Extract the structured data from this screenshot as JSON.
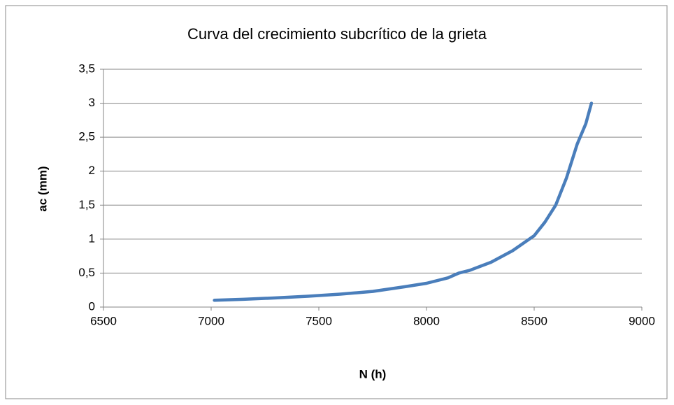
{
  "chart_data": {
    "type": "line",
    "title": "Curva del crecimiento subcrítico de la grieta",
    "x_label": "N (h)",
    "y_label": "ac (mm)",
    "x": [
      7015,
      7150,
      7300,
      7450,
      7600,
      7750,
      7900,
      8000,
      8100,
      8150,
      8200,
      8300,
      8400,
      8500,
      8550,
      8600,
      8650,
      8700,
      8740,
      8766
    ],
    "series": [
      {
        "name": "ac",
        "color": "#4a7ebb",
        "values": [
          0.1,
          0.115,
          0.135,
          0.16,
          0.19,
          0.23,
          0.3,
          0.35,
          0.43,
          0.5,
          0.54,
          0.66,
          0.83,
          1.05,
          1.25,
          1.5,
          1.9,
          2.4,
          2.7,
          3.0
        ]
      }
    ],
    "xlim": [
      6500,
      9000
    ],
    "xticks": [
      6500,
      7000,
      7500,
      8000,
      8500,
      9000
    ],
    "ylim": [
      0,
      3.5
    ],
    "yticks": [
      0,
      {
        "value": 0.5,
        "label": "0,5"
      },
      1,
      {
        "value": 1.5,
        "label": "1,5"
      },
      2,
      {
        "value": 2.5,
        "label": "2,5"
      },
      3,
      {
        "value": 3.5,
        "label": "3,5"
      }
    ],
    "grid": true
  }
}
